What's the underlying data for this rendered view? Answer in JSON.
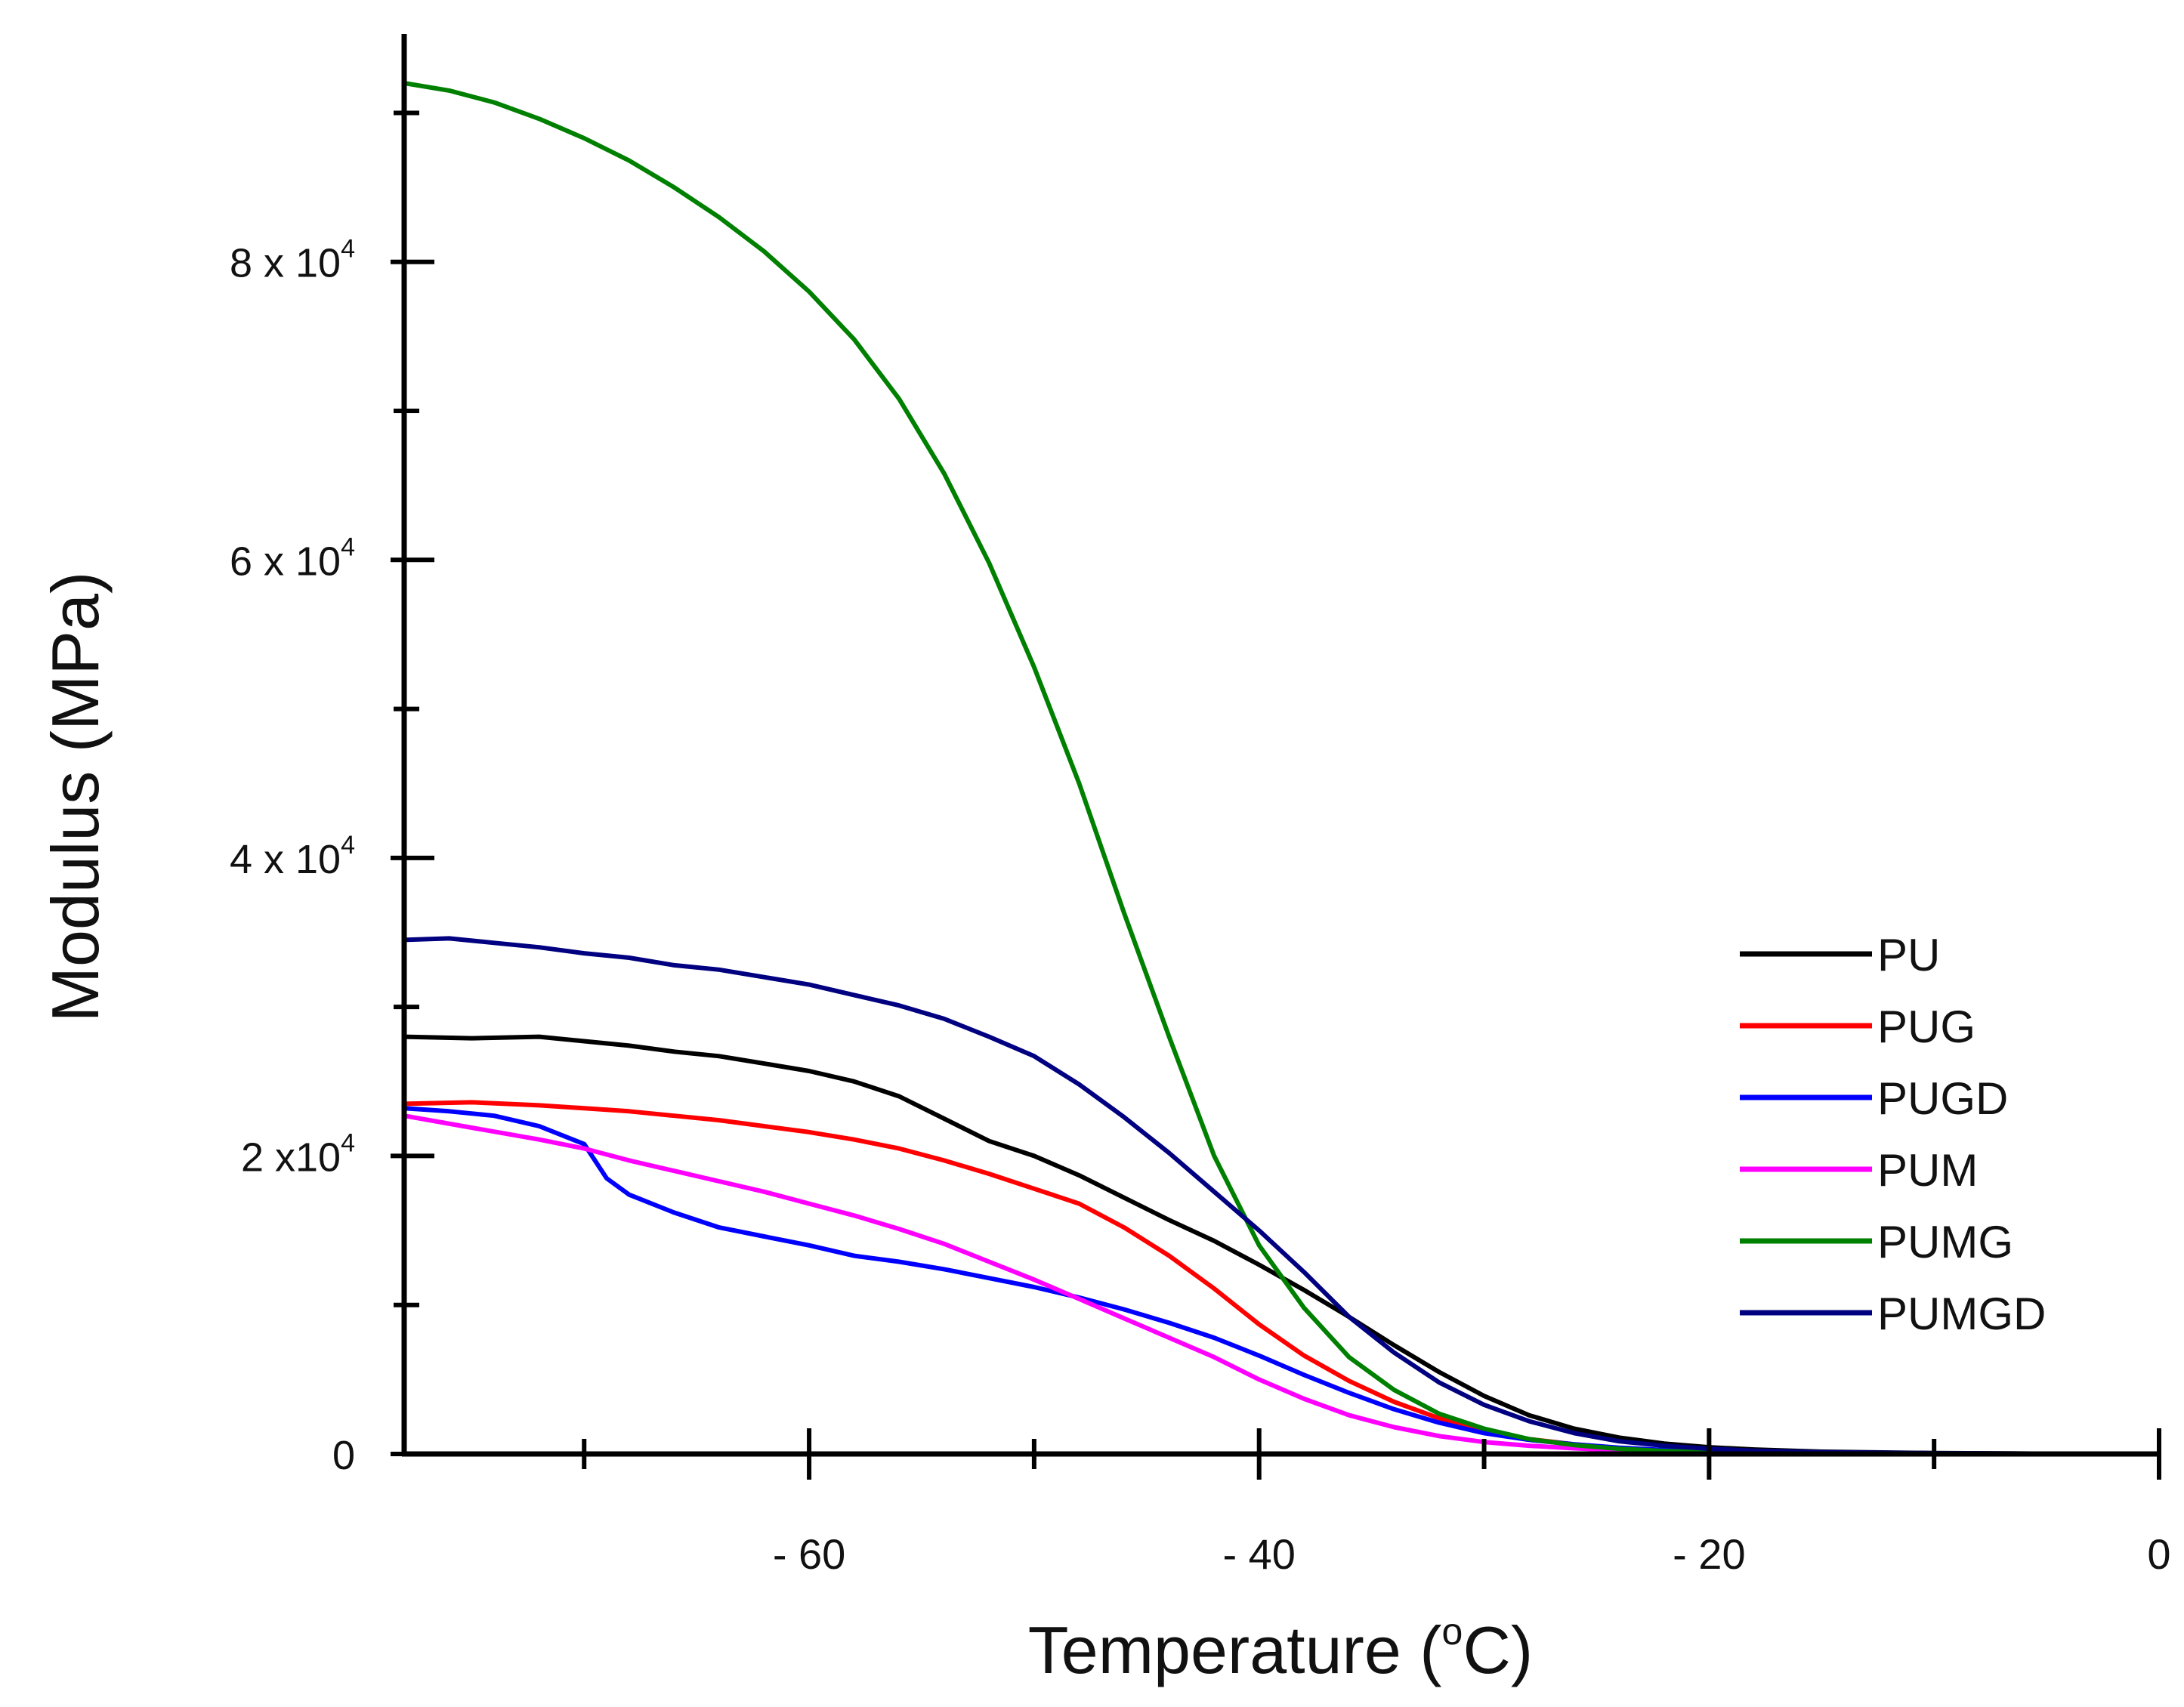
{
  "chart_data": {
    "type": "line",
    "title": "",
    "xlabel": {
      "pre": "Temperature (",
      "sup": "o",
      "post": "C)"
    },
    "ylabel": "Modulus (MPa)",
    "xlim": [
      -78,
      0
    ],
    "ylim": [
      0,
      92000
    ],
    "x_ticks": [
      {
        "value": -60,
        "label": "- 60"
      },
      {
        "value": -40,
        "label": "- 40"
      },
      {
        "value": -20,
        "label": "- 20"
      },
      {
        "value": 0,
        "label": "0"
      }
    ],
    "x_minor_ticks": [
      -70,
      -50,
      -30,
      -10
    ],
    "y_ticks": [
      {
        "value": 0,
        "base": "0",
        "exp": ""
      },
      {
        "value": 20000,
        "base": "2 x10",
        "exp": "4"
      },
      {
        "value": 40000,
        "base": "4 x 10",
        "exp": "4"
      },
      {
        "value": 60000,
        "base": "6 x 10",
        "exp": "4"
      },
      {
        "value": 80000,
        "base": "8 x 10",
        "exp": "4"
      }
    ],
    "y_minor_ticks": [
      10000,
      30000,
      50000,
      70000,
      90000
    ],
    "legend_position": "right",
    "series": [
      {
        "name": "PU",
        "color": "#000000",
        "x": [
          -78,
          -75,
          -72,
          -70,
          -68,
          -66,
          -64,
          -62,
          -60,
          -58,
          -56,
          -54,
          -52,
          -50,
          -48,
          -46,
          -44,
          -42,
          -40,
          -38,
          -36,
          -34,
          -32,
          -30,
          -28,
          -26,
          -24,
          -22,
          -20,
          -18,
          -15,
          -10,
          -5,
          0
        ],
        "y": [
          28000,
          27900,
          28000,
          27700,
          27400,
          27000,
          26700,
          26200,
          25700,
          25000,
          24000,
          22500,
          21000,
          20000,
          18700,
          17200,
          15700,
          14300,
          12700,
          11000,
          9200,
          7300,
          5500,
          3900,
          2600,
          1700,
          1100,
          700,
          450,
          300,
          150,
          60,
          20,
          0
        ]
      },
      {
        "name": "PUG",
        "color": "#ff0000",
        "x": [
          -78,
          -75,
          -72,
          -70,
          -68,
          -66,
          -64,
          -62,
          -60,
          -58,
          -56,
          -54,
          -52,
          -50,
          -48,
          -46,
          -44,
          -42,
          -40,
          -38,
          -36,
          -34,
          -32,
          -30,
          -28,
          -26,
          -24,
          -22,
          -20,
          -18,
          -15,
          -10,
          -5,
          0
        ],
        "y": [
          23500,
          23600,
          23400,
          23200,
          23000,
          22700,
          22400,
          22000,
          21600,
          21100,
          20500,
          19700,
          18800,
          17800,
          16800,
          15200,
          13300,
          11100,
          8700,
          6600,
          4900,
          3500,
          2400,
          1600,
          1000,
          650,
          400,
          250,
          150,
          90,
          50,
          20,
          8,
          0
        ]
      },
      {
        "name": "PUGD",
        "color": "#0000ff",
        "x": [
          -78,
          -76,
          -74,
          -72,
          -70,
          -69,
          -68,
          -66,
          -64,
          -62,
          -60,
          -58,
          -56,
          -54,
          -52,
          -50,
          -48,
          -46,
          -44,
          -42,
          -40,
          -38,
          -36,
          -34,
          -32,
          -30,
          -28,
          -26,
          -24,
          -22,
          -20,
          -18,
          -15,
          -10,
          -5,
          0
        ],
        "y": [
          23200,
          23000,
          22700,
          22000,
          20800,
          18500,
          17400,
          16200,
          15200,
          14600,
          14000,
          13300,
          12900,
          12400,
          11800,
          11200,
          10500,
          9700,
          8800,
          7800,
          6600,
          5300,
          4100,
          3000,
          2100,
          1400,
          950,
          650,
          420,
          270,
          170,
          110,
          60,
          25,
          10,
          0
        ]
      },
      {
        "name": "PUM",
        "color": "#ff00ff",
        "x": [
          -78,
          -75,
          -72,
          -70,
          -68,
          -66,
          -64,
          -62,
          -60,
          -58,
          -56,
          -54,
          -52,
          -50,
          -48,
          -46,
          -44,
          -42,
          -40,
          -38,
          -36,
          -34,
          -32,
          -30,
          -28,
          -26,
          -24,
          -22,
          -20,
          -18,
          -15,
          -10,
          -5,
          0
        ],
        "y": [
          22700,
          21900,
          21100,
          20500,
          19700,
          19000,
          18300,
          17600,
          16800,
          16000,
          15100,
          14100,
          12900,
          11700,
          10400,
          9100,
          7800,
          6500,
          5000,
          3700,
          2600,
          1800,
          1200,
          800,
          550,
          380,
          250,
          160,
          100,
          60,
          30,
          10,
          5,
          0
        ]
      },
      {
        "name": "PUMG",
        "color": "#008000",
        "x": [
          -78,
          -76,
          -74,
          -72,
          -70,
          -68,
          -66,
          -64,
          -62,
          -60,
          -58,
          -56,
          -54,
          -52,
          -50,
          -48,
          -46,
          -44,
          -42,
          -40,
          -38,
          -36,
          -34,
          -32,
          -30,
          -28,
          -26,
          -24,
          -22,
          -20,
          -18,
          -15,
          -10,
          -5,
          0
        ],
        "y": [
          92000,
          91500,
          90700,
          89600,
          88300,
          86800,
          85000,
          83000,
          80700,
          78000,
          74800,
          70800,
          65800,
          59800,
          52800,
          45000,
          36300,
          28000,
          20000,
          14000,
          9800,
          6500,
          4300,
          2700,
          1700,
          1000,
          600,
          350,
          200,
          110,
          60,
          25,
          10,
          4,
          0
        ]
      },
      {
        "name": "PUMGD",
        "color": "#000080",
        "x": [
          -78,
          -76,
          -74,
          -72,
          -70,
          -68,
          -66,
          -64,
          -62,
          -60,
          -58,
          -56,
          -54,
          -52,
          -50,
          -48,
          -46,
          -44,
          -42,
          -40,
          -38,
          -36,
          -34,
          -32,
          -30,
          -28,
          -26,
          -24,
          -22,
          -20,
          -18,
          -15,
          -10,
          -5,
          0
        ],
        "y": [
          34500,
          34600,
          34300,
          34000,
          33600,
          33300,
          32800,
          32500,
          32000,
          31500,
          30800,
          30100,
          29200,
          28000,
          26700,
          24800,
          22600,
          20200,
          17600,
          15000,
          12200,
          9200,
          6800,
          4800,
          3300,
          2200,
          1400,
          850,
          550,
          350,
          220,
          120,
          50,
          20,
          0
        ]
      }
    ]
  }
}
